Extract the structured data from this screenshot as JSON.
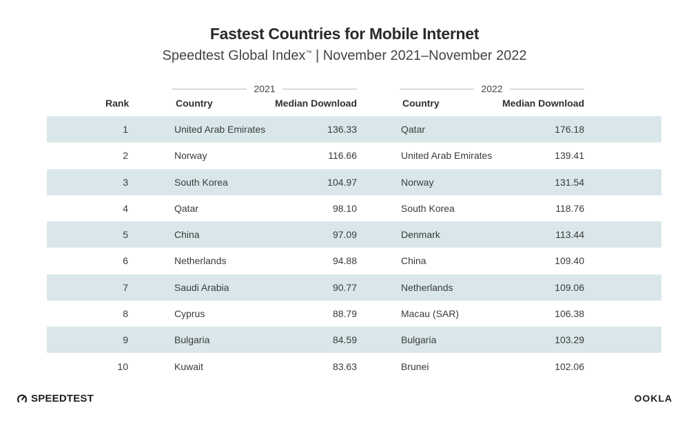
{
  "header": {
    "title": "Fastest Countries for Mobile Internet",
    "subtitle": "Speedtest Global Index",
    "trademark": "™",
    "subtitle_period": " | November 2021–November 2022"
  },
  "table": {
    "year_left": "2021",
    "year_right": "2022",
    "columns": {
      "rank": "Rank",
      "country_left": "Country",
      "download_left": "Median Download",
      "country_right": "Country",
      "download_right": "Median Download"
    },
    "rows": [
      {
        "rank": "1",
        "country_2021": "United Arab Emirates",
        "download_2021": "136.33",
        "country_2022": "Qatar",
        "download_2022": "176.18"
      },
      {
        "rank": "2",
        "country_2021": "Norway",
        "download_2021": "116.66",
        "country_2022": "United Arab Emirates",
        "download_2022": "139.41"
      },
      {
        "rank": "3",
        "country_2021": "South Korea",
        "download_2021": "104.97",
        "country_2022": "Norway",
        "download_2022": "131.54"
      },
      {
        "rank": "4",
        "country_2021": "Qatar",
        "download_2021": "98.10",
        "country_2022": "South Korea",
        "download_2022": "118.76"
      },
      {
        "rank": "5",
        "country_2021": "China",
        "download_2021": "97.09",
        "country_2022": "Denmark",
        "download_2022": "113.44"
      },
      {
        "rank": "6",
        "country_2021": "Netherlands",
        "download_2021": "94.88",
        "country_2022": "China",
        "download_2022": "109.40"
      },
      {
        "rank": "7",
        "country_2021": "Saudi Arabia",
        "download_2021": "90.77",
        "country_2022": "Netherlands",
        "download_2022": "109.06"
      },
      {
        "rank": "8",
        "country_2021": "Cyprus",
        "download_2021": "88.79",
        "country_2022": "Macau (SAR)",
        "download_2022": "106.38"
      },
      {
        "rank": "9",
        "country_2021": "Bulgaria",
        "download_2021": "84.59",
        "country_2022": "Bulgaria",
        "download_2022": "103.29"
      },
      {
        "rank": "10",
        "country_2021": "Kuwait",
        "download_2021": "83.63",
        "country_2022": "Brunei",
        "download_2022": "102.06"
      }
    ]
  },
  "footer": {
    "left_logo_icon": "speedometer-icon",
    "left_logo_text": "SPEEDTEST",
    "right_logo_text": "OOKLA"
  },
  "colors": {
    "row_shade": "#d9e7ea",
    "text": "#333333"
  }
}
